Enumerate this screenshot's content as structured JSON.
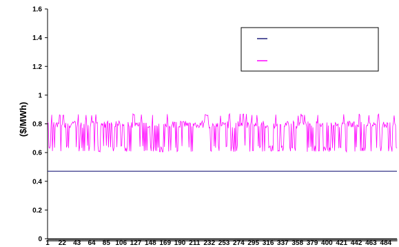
{
  "chart_data": {
    "type": "line",
    "title": "",
    "xlabel": "",
    "ylabel": "($/MWh)",
    "ylim": [
      0,
      1.6
    ],
    "yticks": [
      "0",
      "0.2",
      "0.4",
      "0.6",
      "0.8",
      "1",
      "1.2",
      "1.4",
      "1.6"
    ],
    "xlim": [
      1,
      500
    ],
    "xticks": [
      "1",
      "22",
      "43",
      "64",
      "85",
      "106",
      "127",
      "148",
      "169",
      "190",
      "211",
      "232",
      "253",
      "274",
      "295",
      "316",
      "337",
      "358",
      "379",
      "400",
      "421",
      "442",
      "463",
      "484"
    ],
    "grid": false,
    "legend": {
      "position": "top-right",
      "entries": [
        "",
        ""
      ]
    },
    "series": [
      {
        "color": "#1f1f7a",
        "constant_value": 0.47,
        "n_points": 500
      },
      {
        "color": "#ff00ff",
        "n_points": 500,
        "low_level": 0.61,
        "mid_level": 0.64,
        "high_levels": [
          0.78,
          0.8,
          0.81
        ],
        "peak_level": 0.87,
        "approx_range": [
          0.6,
          0.88
        ]
      }
    ]
  }
}
